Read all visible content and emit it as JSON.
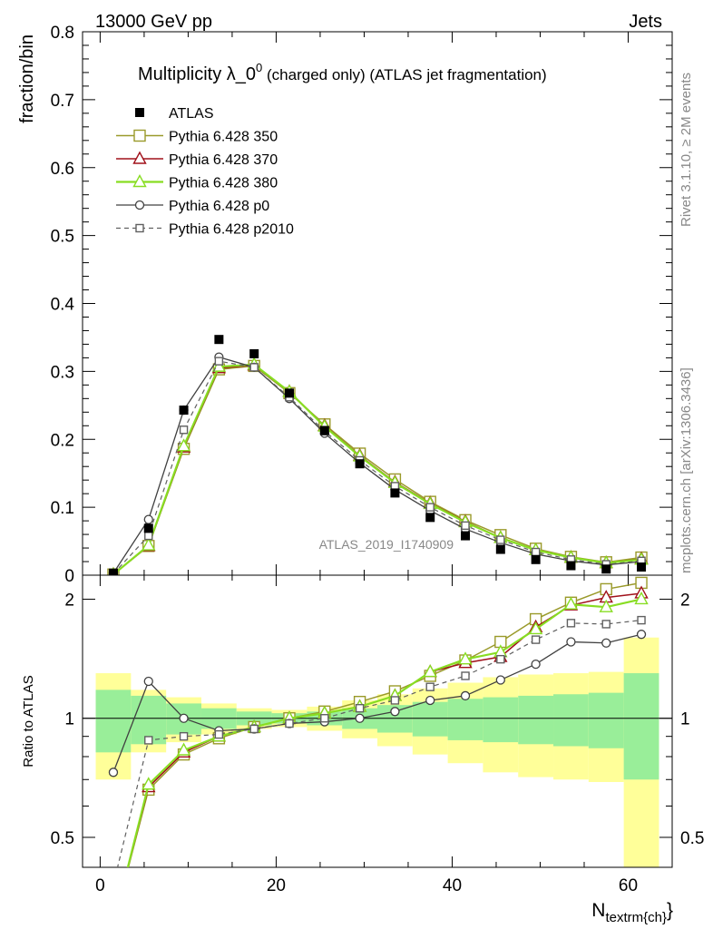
{
  "header": {
    "left": "13000 GeV pp",
    "right": "Jets"
  },
  "side_labels": {
    "rivet": "Rivet 3.1.10, ≥ 2M events",
    "mcplots": "mcplots.cern.ch [arXiv:1306.3436]"
  },
  "colors": {
    "atlas": "#000000",
    "p350": "#9a9a2a",
    "p370": "#a0101a",
    "p380": "#88dd22",
    "p0": "#404040",
    "p2010": "#606060",
    "band_inner": "#99ee99",
    "band_outer": "#ffff99"
  },
  "chart_data": {
    "type": "line",
    "title": "Multiplicity λ_0^0 (charged only) (ATLAS jet fragmentation)",
    "title_parts": {
      "main": "Multiplicity λ_0",
      "sup": "0",
      "rest": " (charged only) (ATLAS jet fragmentation)"
    },
    "ylabel": "fraction/bin",
    "xlabel": "N",
    "xlabel_sub": "textrm{ch}",
    "xlabel_tail": "}",
    "ratio_ylabel": "Ratio to ATLAS",
    "analysis_label": "ATLAS_2019_I1740909",
    "xlim": [
      -2,
      65
    ],
    "ylim": [
      0,
      0.8
    ],
    "ratio_ylim": [
      0.42,
      2.3
    ],
    "x_ticks": [
      0,
      20,
      40,
      60
    ],
    "y_ticks": [
      0,
      0.1,
      0.2,
      0.3,
      0.4,
      0.5,
      0.6,
      0.7,
      0.8
    ],
    "y_tick_labels": [
      "0",
      "0.1",
      "0.2",
      "0.3",
      "0.4",
      "0.5",
      "0.6",
      "0.7",
      "0.8"
    ],
    "ratio_ticks": [
      0.5,
      1,
      2
    ],
    "ratio_tick_labels": [
      "0.5",
      "1",
      "2"
    ],
    "legend_position": "top-left",
    "bin_edges": [
      -0.5,
      3.5,
      7.5,
      11.5,
      15.5,
      19.5,
      23.5,
      27.5,
      31.5,
      35.5,
      39.5,
      43.5,
      47.5,
      51.5,
      55.5,
      59.5,
      63.5
    ],
    "x": [
      1.5,
      5.5,
      9.5,
      13.5,
      17.5,
      21.5,
      25.5,
      29.5,
      33.5,
      37.5,
      41.5,
      45.5,
      49.5,
      53.5,
      57.5,
      61.5
    ],
    "band_inner": [
      0.18,
      0.14,
      0.09,
      0.06,
      0.04,
      0.03,
      0.04,
      0.06,
      0.08,
      0.1,
      0.12,
      0.13,
      0.14,
      0.15,
      0.16,
      0.3
    ],
    "band_outer": [
      0.3,
      0.18,
      0.13,
      0.09,
      0.06,
      0.05,
      0.07,
      0.11,
      0.15,
      0.19,
      0.23,
      0.27,
      0.29,
      0.3,
      0.31,
      0.6
    ],
    "series": [
      {
        "name": "ATLAS",
        "style": "data",
        "values": [
          0.003,
          0.069,
          0.243,
          0.347,
          0.326,
          0.268,
          0.213,
          0.164,
          0.121,
          0.085,
          0.058,
          0.038,
          0.023,
          0.014,
          0.009,
          0.012
        ],
        "ratio": [
          1,
          1,
          1,
          1,
          1,
          1,
          1,
          1,
          1,
          1,
          1,
          1,
          1,
          1,
          1,
          1
        ]
      },
      {
        "name": "Pythia 6.428 350",
        "style": "open-square",
        "values": [
          0.001,
          0.043,
          0.186,
          0.303,
          0.308,
          0.268,
          0.222,
          0.179,
          0.141,
          0.108,
          0.081,
          0.059,
          0.039,
          0.027,
          0.019,
          0.026
        ],
        "ratio": [
          0.3,
          0.66,
          0.81,
          0.89,
          0.95,
          1.0,
          1.04,
          1.1,
          1.17,
          1.28,
          1.4,
          1.56,
          1.78,
          1.96,
          2.12,
          2.2
        ]
      },
      {
        "name": "Pythia 6.428 370",
        "style": "open-triangle",
        "values": [
          0.001,
          0.043,
          0.188,
          0.305,
          0.309,
          0.27,
          0.22,
          0.176,
          0.137,
          0.106,
          0.079,
          0.055,
          0.037,
          0.026,
          0.018,
          0.024
        ],
        "ratio": [
          0.3,
          0.67,
          0.82,
          0.9,
          0.95,
          1.0,
          1.03,
          1.07,
          1.14,
          1.31,
          1.38,
          1.43,
          1.7,
          1.93,
          2.02,
          2.07
        ]
      },
      {
        "name": "Pythia 6.428 380",
        "style": "open-triangle",
        "values": [
          0.001,
          0.044,
          0.19,
          0.307,
          0.31,
          0.27,
          0.219,
          0.175,
          0.136,
          0.105,
          0.078,
          0.055,
          0.037,
          0.026,
          0.018,
          0.023
        ],
        "ratio": [
          0.3,
          0.68,
          0.83,
          0.9,
          0.95,
          1.0,
          1.03,
          1.07,
          1.14,
          1.31,
          1.41,
          1.47,
          1.68,
          1.94,
          1.91,
          2.0
        ]
      },
      {
        "name": "Pythia 6.428 p0",
        "style": "open-circle",
        "values": [
          0.003,
          0.082,
          0.243,
          0.321,
          0.306,
          0.26,
          0.209,
          0.165,
          0.126,
          0.095,
          0.068,
          0.048,
          0.031,
          0.021,
          0.015,
          0.02
        ],
        "ratio": [
          0.73,
          1.24,
          1.0,
          0.93,
          0.94,
          0.97,
          0.98,
          1.0,
          1.04,
          1.11,
          1.14,
          1.25,
          1.37,
          1.56,
          1.55,
          1.63
        ]
      },
      {
        "name": "Pythia 6.428 p2010",
        "style": "open-square-dashed",
        "values": [
          0.002,
          0.058,
          0.214,
          0.315,
          0.306,
          0.262,
          0.212,
          0.169,
          0.131,
          0.1,
          0.073,
          0.052,
          0.034,
          0.023,
          0.016,
          0.021
        ],
        "ratio": [
          0.38,
          0.88,
          0.9,
          0.91,
          0.94,
          0.97,
          1.0,
          1.06,
          1.11,
          1.2,
          1.28,
          1.41,
          1.58,
          1.74,
          1.73,
          1.77
        ]
      }
    ]
  }
}
